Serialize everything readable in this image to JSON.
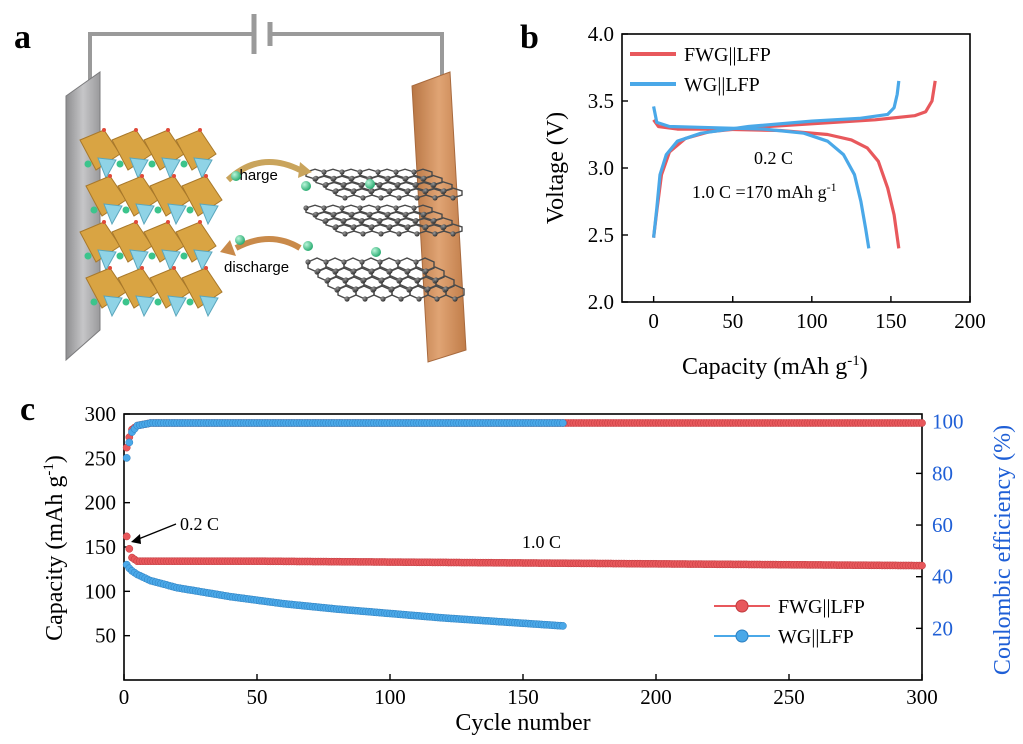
{
  "panels": {
    "a": "a",
    "b": "b",
    "c": "c"
  },
  "schematic": {
    "charge_label": "charge",
    "discharge_label": "discharge",
    "colors": {
      "cathode_plate": "#c98a55",
      "anode_plate": "#a9a9ab",
      "polyhedra": "#d9a443",
      "li_ion": "#3cc48c",
      "graphene": "#4a4a4a"
    }
  },
  "colors": {
    "fwg": "#e8585c",
    "wg": "#4aa8e8",
    "ce_axis": "#1f5fd6"
  },
  "chart_data": [
    {
      "panel": "b",
      "type": "line",
      "xlabel": "Capacity (mAh g",
      "xlabel_sup": "-1",
      "xlabel_end": ")",
      "ylabel": "Voltage (V)",
      "xlim": [
        -20,
        200
      ],
      "ylim": [
        2.0,
        4.0
      ],
      "xticks": [
        "0",
        "50",
        "100",
        "150",
        "200"
      ],
      "yticks": [
        "2.0",
        "2.5",
        "3.0",
        "3.5",
        "4.0"
      ],
      "legend_position": "top-left",
      "annotations": {
        "rate": "0.2 C",
        "def_main": "1.0 C =170 mAh g",
        "def_sup": "-1"
      },
      "series": [
        {
          "name": "FWG||LFP",
          "color": "#e8585c",
          "charge": [
            [
              0,
              2.48
            ],
            [
              2,
              2.68
            ],
            [
              5,
              2.95
            ],
            [
              10,
              3.12
            ],
            [
              20,
              3.22
            ],
            [
              35,
              3.27
            ],
            [
              60,
              3.3
            ],
            [
              100,
              3.33
            ],
            [
              140,
              3.36
            ],
            [
              165,
              3.39
            ],
            [
              172,
              3.42
            ],
            [
              176,
              3.5
            ],
            [
              178,
              3.65
            ]
          ],
          "discharge": [
            [
              0,
              3.36
            ],
            [
              3,
              3.31
            ],
            [
              15,
              3.29
            ],
            [
              40,
              3.29
            ],
            [
              80,
              3.28
            ],
            [
              110,
              3.25
            ],
            [
              125,
              3.21
            ],
            [
              135,
              3.15
            ],
            [
              142,
              3.05
            ],
            [
              148,
              2.85
            ],
            [
              152,
              2.65
            ],
            [
              155,
              2.4
            ]
          ]
        },
        {
          "name": "WG||LFP",
          "color": "#4aa8e8",
          "charge": [
            [
              0,
              2.48
            ],
            [
              2,
              2.7
            ],
            [
              4,
              2.95
            ],
            [
              8,
              3.1
            ],
            [
              15,
              3.2
            ],
            [
              30,
              3.26
            ],
            [
              60,
              3.31
            ],
            [
              100,
              3.35
            ],
            [
              130,
              3.37
            ],
            [
              148,
              3.4
            ],
            [
              152,
              3.45
            ],
            [
              154,
              3.55
            ],
            [
              155,
              3.65
            ]
          ],
          "discharge": [
            [
              0,
              3.46
            ],
            [
              2,
              3.34
            ],
            [
              10,
              3.31
            ],
            [
              40,
              3.3
            ],
            [
              70,
              3.29
            ],
            [
              95,
              3.26
            ],
            [
              110,
              3.2
            ],
            [
              120,
              3.1
            ],
            [
              127,
              2.95
            ],
            [
              131,
              2.75
            ],
            [
              134,
              2.55
            ],
            [
              136,
              2.4
            ]
          ]
        }
      ]
    },
    {
      "panel": "c",
      "type": "scatter",
      "xlabel": "Cycle number",
      "ylabel_left": "Capacity (mAh g",
      "ylabel_left_sup": "-1",
      "ylabel_left_end": ")",
      "ylabel_right": "Coulombic efficiency (%)",
      "xlim": [
        0,
        300
      ],
      "ylim_left": [
        0,
        300
      ],
      "ylim_right": [
        0,
        103
      ],
      "xticks": [
        "0",
        "50",
        "100",
        "150",
        "200",
        "250",
        "300"
      ],
      "yticks_left": [
        "50",
        "100",
        "150",
        "200",
        "250",
        "300"
      ],
      "yticks_right": [
        "20",
        "40",
        "60",
        "80",
        "100"
      ],
      "legend_position": "bottom-right",
      "annotations": {
        "rate_low": "0.2 C",
        "rate_high": "1.0 C"
      },
      "series": [
        {
          "name": "FWG||LFP",
          "color": "#e8585c",
          "cycles": 300,
          "capacity": [
            [
              1,
              162
            ],
            [
              2,
              148
            ],
            [
              3,
              138
            ],
            [
              5,
              134
            ],
            [
              10,
              134
            ],
            [
              20,
              134
            ],
            [
              50,
              134
            ],
            [
              100,
              133
            ],
            [
              150,
              132
            ],
            [
              200,
              131
            ],
            [
              250,
              130
            ],
            [
              300,
              129
            ]
          ],
          "ce": [
            [
              1,
              90
            ],
            [
              2,
              94
            ],
            [
              3,
              97
            ],
            [
              5,
              98.5
            ],
            [
              10,
              99.5
            ],
            [
              100,
              99.5
            ],
            [
              300,
              99.5
            ]
          ]
        },
        {
          "name": "WG||LFP",
          "color": "#4aa8e8",
          "cycles": 165,
          "capacity": [
            [
              1,
              130
            ],
            [
              2,
              126
            ],
            [
              3,
              123
            ],
            [
              5,
              119
            ],
            [
              10,
              112
            ],
            [
              20,
              104
            ],
            [
              40,
              94
            ],
            [
              60,
              86
            ],
            [
              80,
              80
            ],
            [
              100,
              75
            ],
            [
              120,
              70
            ],
            [
              140,
              66
            ],
            [
              165,
              61
            ]
          ],
          "ce": [
            [
              1,
              86
            ],
            [
              2,
              92
            ],
            [
              3,
              96
            ],
            [
              5,
              98.5
            ],
            [
              10,
              99.5
            ],
            [
              165,
              99.5
            ]
          ]
        }
      ]
    }
  ]
}
